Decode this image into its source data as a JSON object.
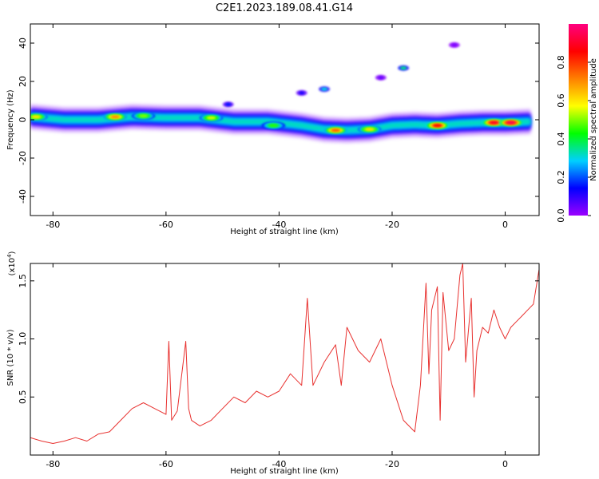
{
  "figure_title": "C2E1.2023.189.08.41.G14",
  "chart_data": [
    {
      "type": "heatmap",
      "xlabel": "Height of straight line (km)",
      "ylabel": "Frequency (Hz)",
      "xlim": [
        -84,
        6
      ],
      "ylim": [
        -50,
        50
      ],
      "xticks": [
        -80,
        -60,
        -40,
        -20,
        0
      ],
      "xtick_labels": [
        "-80",
        "-60",
        "-40",
        "-20",
        "0"
      ],
      "yticks": [
        -40,
        -20,
        0,
        20,
        40
      ],
      "ytick_labels": [
        "-40",
        "-20",
        "0",
        "20",
        "40"
      ],
      "colorbar": {
        "label": "Normalized spectral amplitude",
        "range": [
          0,
          1
        ],
        "ticks": [
          0.0,
          0.2,
          0.4,
          0.6,
          0.8
        ],
        "tick_labels": [
          "0.0",
          "0.2",
          "0.4",
          "0.6",
          "0.8"
        ],
        "colormap": [
          "#9b00ff",
          "#0000ff",
          "#00d0ff",
          "#00ff00",
          "#ffff00",
          "#ff8000",
          "#ff0000",
          "#ff0080"
        ]
      },
      "ridge": {
        "x": [
          -84,
          -78,
          -72,
          -66,
          -60,
          -54,
          -48,
          -42,
          -36,
          -32,
          -28,
          -24,
          -20,
          -16,
          -12,
          -8,
          -4,
          0,
          4
        ],
        "frequency": [
          1.5,
          0,
          0,
          1.5,
          1,
          1,
          -1,
          -1,
          -3,
          -5,
          -5.5,
          -5,
          -3,
          -2.5,
          -3,
          -2,
          -1.5,
          -1.5,
          -1
        ]
      },
      "hotspots": [
        {
          "x": -83,
          "frequency": 1.5,
          "amplitude": 0.6
        },
        {
          "x": -69,
          "frequency": 1.5,
          "amplitude": 0.7
        },
        {
          "x": -64,
          "frequency": 2.0,
          "amplitude": 0.5
        },
        {
          "x": -52,
          "frequency": 1.0,
          "amplitude": 0.55
        },
        {
          "x": -41,
          "frequency": -3.0,
          "amplitude": 0.45
        },
        {
          "x": -30,
          "frequency": -5.5,
          "amplitude": 0.75
        },
        {
          "x": -24,
          "frequency": -5.0,
          "amplitude": 0.6
        },
        {
          "x": -12,
          "frequency": -3.0,
          "amplitude": 0.85
        },
        {
          "x": -2,
          "frequency": -1.5,
          "amplitude": 0.9
        },
        {
          "x": 1,
          "frequency": -1.5,
          "amplitude": 0.95
        }
      ],
      "outliers": [
        {
          "x": -18,
          "frequency": 27,
          "amplitude": 0.35
        },
        {
          "x": -32,
          "frequency": 16,
          "amplitude": 0.3
        },
        {
          "x": -36,
          "frequency": 14,
          "amplitude": 0.12
        },
        {
          "x": -22,
          "frequency": 22,
          "amplitude": 0.05
        },
        {
          "x": -9,
          "frequency": 39,
          "amplitude": 0.03
        },
        {
          "x": -49,
          "frequency": 8,
          "amplitude": 0.15
        }
      ]
    },
    {
      "type": "line",
      "xlabel": "Height of straight line (km)",
      "ylabel": "SNR (10 * v/v)",
      "y_multiplier_label": "(x10",
      "y_multiplier_exp": "4",
      "y_multiplier_close": ")",
      "xlim": [
        -84,
        6
      ],
      "ylim": [
        0,
        1.65
      ],
      "xticks": [
        -80,
        -60,
        -40,
        -20,
        0
      ],
      "xtick_labels": [
        "-80",
        "-60",
        "-40",
        "-20",
        "0"
      ],
      "yticks": [
        0.5,
        1.0,
        1.5
      ],
      "ytick_labels": [
        "0.5",
        "1.0",
        "1.5"
      ],
      "series": [
        {
          "color": "#e8312f",
          "x": [
            -84,
            -82,
            -80,
            -78,
            -76,
            -74,
            -72,
            -70,
            -68,
            -66,
            -64,
            -62,
            -60,
            -59.5,
            -59,
            -58,
            -56.5,
            -56,
            -55.5,
            -54,
            -52,
            -50,
            -48,
            -46,
            -44,
            -42,
            -40,
            -38,
            -36,
            -35,
            -34,
            -32,
            -30,
            -29,
            -28,
            -26,
            -24,
            -22,
            -20,
            -18,
            -16,
            -15,
            -14,
            -13.5,
            -13,
            -12,
            -11.5,
            -11,
            -10,
            -9,
            -8,
            -7.5,
            -7,
            -6,
            -5.5,
            -5,
            -4,
            -3,
            -2,
            -1,
            0,
            1,
            2,
            3,
            4,
            5,
            6
          ],
          "values": [
            0.15,
            0.12,
            0.1,
            0.12,
            0.15,
            0.12,
            0.18,
            0.2,
            0.3,
            0.4,
            0.45,
            0.4,
            0.35,
            0.98,
            0.3,
            0.38,
            0.98,
            0.4,
            0.3,
            0.25,
            0.3,
            0.4,
            0.5,
            0.45,
            0.55,
            0.5,
            0.55,
            0.7,
            0.6,
            1.35,
            0.6,
            0.8,
            0.95,
            0.6,
            1.1,
            0.9,
            0.8,
            1.0,
            0.6,
            0.3,
            0.2,
            0.6,
            1.48,
            0.7,
            1.25,
            1.45,
            0.3,
            1.4,
            0.9,
            1.0,
            1.55,
            1.65,
            0.8,
            1.35,
            0.5,
            0.9,
            1.1,
            1.05,
            1.25,
            1.1,
            1.0,
            1.1,
            1.15,
            1.2,
            1.25,
            1.3,
            1.6
          ]
        }
      ]
    }
  ]
}
